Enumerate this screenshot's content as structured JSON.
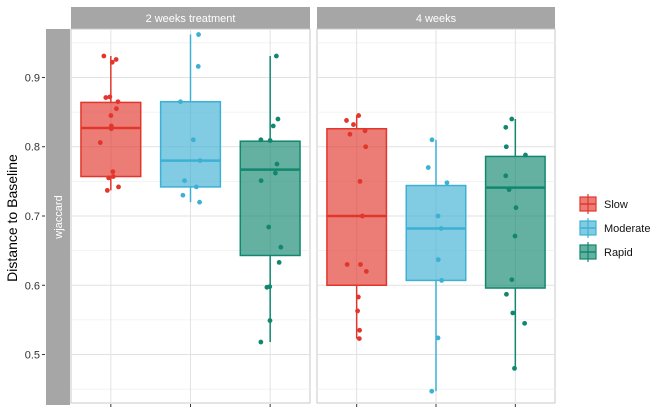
{
  "chart_data": {
    "type": "boxplot",
    "ylabel": "Distance to Baseline",
    "row_strip": "wjaccard",
    "ylim": [
      0.43,
      0.97
    ],
    "y_ticks": [
      0.5,
      0.6,
      0.7,
      0.8,
      0.9
    ],
    "y_tick_labels": [
      "0.5",
      "0.6",
      "0.7",
      "0.8",
      "0.9"
    ],
    "grid": true,
    "legend_position": "right",
    "categories": [
      "Slow",
      "Moderate",
      "Rapid"
    ],
    "legend": [
      {
        "name": "Slow",
        "color": "#E2362C"
      },
      {
        "name": "Moderate",
        "color": "#3DB0D4"
      },
      {
        "name": "Rapid",
        "color": "#12876F"
      }
    ],
    "panels": [
      {
        "title": "2 weeks treatment",
        "boxes": [
          {
            "group": "Slow",
            "lower_whisker": 0.737,
            "q1": 0.757,
            "median": 0.827,
            "q3": 0.864,
            "upper_whisker": 0.931,
            "points": [
              0.931,
              0.926,
              0.922,
              0.872,
              0.871,
              0.865,
              0.855,
              0.845,
              0.83,
              0.826,
              0.806,
              0.764,
              0.757,
              0.755,
              0.742,
              0.737
            ]
          },
          {
            "group": "Moderate",
            "lower_whisker": 0.72,
            "q1": 0.742,
            "median": 0.78,
            "q3": 0.865,
            "upper_whisker": 0.962,
            "points": [
              0.962,
              0.916,
              0.865,
              0.81,
              0.78,
              0.751,
              0.742,
              0.73,
              0.72
            ]
          },
          {
            "group": "Rapid",
            "lower_whisker": 0.518,
            "q1": 0.643,
            "median": 0.767,
            "q3": 0.808,
            "upper_whisker": 0.931,
            "points": [
              0.931,
              0.84,
              0.83,
              0.81,
              0.809,
              0.775,
              0.762,
              0.751,
              0.684,
              0.655,
              0.633,
              0.598,
              0.597,
              0.549,
              0.518
            ]
          }
        ]
      },
      {
        "title": "4 weeks",
        "boxes": [
          {
            "group": "Slow",
            "lower_whisker": 0.523,
            "q1": 0.6,
            "median": 0.7,
            "q3": 0.826,
            "upper_whisker": 0.845,
            "points": [
              0.845,
              0.838,
              0.832,
              0.823,
              0.818,
              0.8,
              0.75,
              0.7,
              0.63,
              0.63,
              0.62,
              0.583,
              0.563,
              0.535,
              0.523
            ]
          },
          {
            "group": "Moderate",
            "lower_whisker": 0.447,
            "q1": 0.607,
            "median": 0.682,
            "q3": 0.744,
            "upper_whisker": 0.81,
            "points": [
              0.81,
              0.77,
              0.748,
              0.7,
              0.682,
              0.637,
              0.607,
              0.524,
              0.447
            ]
          },
          {
            "group": "Rapid",
            "lower_whisker": 0.48,
            "q1": 0.596,
            "median": 0.741,
            "q3": 0.786,
            "upper_whisker": 0.84,
            "points": [
              0.84,
              0.828,
              0.8,
              0.788,
              0.758,
              0.738,
              0.712,
              0.671,
              0.608,
              0.587,
              0.56,
              0.545,
              0.48
            ]
          }
        ]
      }
    ]
  }
}
